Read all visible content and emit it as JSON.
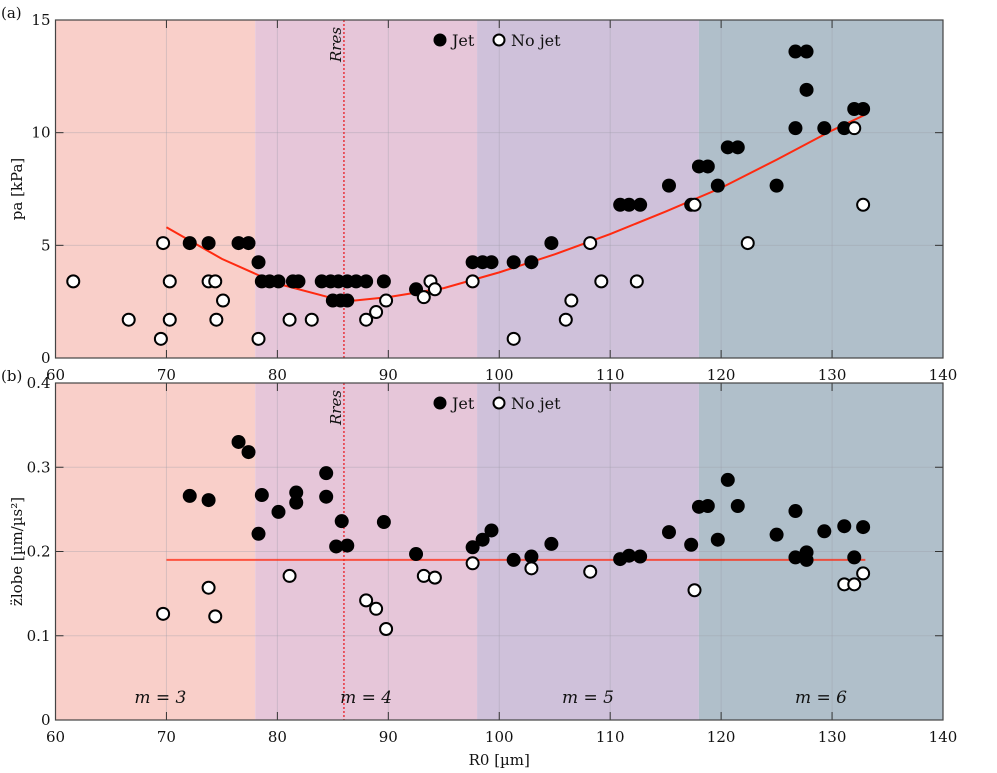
{
  "chart_data": [
    {
      "panel_label": "(a)",
      "type": "scatter",
      "xlabel": "R0 [µm]",
      "ylabel": "pa [kPa]",
      "xlim": [
        60,
        140
      ],
      "ylim": [
        0,
        15
      ],
      "xticks": [
        60,
        70,
        80,
        90,
        100,
        110,
        120,
        130,
        140
      ],
      "yticks": [
        0,
        5,
        10,
        15
      ],
      "grid": true,
      "legend": {
        "placement": "top-center",
        "entries": [
          "Jet",
          "No jet"
        ]
      },
      "vline": {
        "label": "Rres",
        "x": 86
      },
      "series": [
        {
          "name": "Jet",
          "marker": "filled",
          "points": [
            [
              72.1,
              5.1
            ],
            [
              73.8,
              5.1
            ],
            [
              76.5,
              5.1
            ],
            [
              77.4,
              5.1
            ],
            [
              78.3,
              4.25
            ],
            [
              78.6,
              3.4
            ],
            [
              79.3,
              3.4
            ],
            [
              80.1,
              3.4
            ],
            [
              81.4,
              3.4
            ],
            [
              81.9,
              3.4
            ],
            [
              84.0,
              3.4
            ],
            [
              84.8,
              3.4
            ],
            [
              85.5,
              3.4
            ],
            [
              86.3,
              3.4
            ],
            [
              87.1,
              3.4
            ],
            [
              88.0,
              3.4
            ],
            [
              89.6,
              3.4
            ],
            [
              85.0,
              2.55
            ],
            [
              85.7,
              2.55
            ],
            [
              86.3,
              2.55
            ],
            [
              92.5,
              3.05
            ],
            [
              97.6,
              4.25
            ],
            [
              98.5,
              4.25
            ],
            [
              99.3,
              4.25
            ],
            [
              101.3,
              4.25
            ],
            [
              102.9,
              4.25
            ],
            [
              104.7,
              5.1
            ],
            [
              110.9,
              6.8
            ],
            [
              111.7,
              6.8
            ],
            [
              112.7,
              6.8
            ],
            [
              115.3,
              7.65
            ],
            [
              117.3,
              6.8
            ],
            [
              118.0,
              8.5
            ],
            [
              118.8,
              8.5
            ],
            [
              119.7,
              7.65
            ],
            [
              120.6,
              9.35
            ],
            [
              121.5,
              9.35
            ],
            [
              125.0,
              7.65
            ],
            [
              126.7,
              10.2
            ],
            [
              126.7,
              13.6
            ],
            [
              127.7,
              13.6
            ],
            [
              127.7,
              11.9
            ],
            [
              129.3,
              10.2
            ],
            [
              131.1,
              10.2
            ],
            [
              132.0,
              11.05
            ],
            [
              132.8,
              11.05
            ]
          ]
        },
        {
          "name": "No jet",
          "marker": "open",
          "points": [
            [
              61.6,
              3.4
            ],
            [
              66.6,
              1.7
            ],
            [
              69.5,
              0.85
            ],
            [
              69.7,
              5.1
            ],
            [
              70.3,
              3.4
            ],
            [
              70.3,
              1.7
            ],
            [
              73.8,
              3.4
            ],
            [
              74.4,
              3.4
            ],
            [
              74.5,
              1.7
            ],
            [
              75.1,
              2.55
            ],
            [
              78.3,
              0.85
            ],
            [
              81.1,
              1.7
            ],
            [
              83.1,
              1.7
            ],
            [
              88.0,
              1.7
            ],
            [
              88.9,
              2.04
            ],
            [
              89.8,
              2.55
            ],
            [
              93.2,
              2.7
            ],
            [
              93.8,
              3.4
            ],
            [
              94.2,
              3.05
            ],
            [
              97.6,
              3.4
            ],
            [
              101.3,
              0.85
            ],
            [
              106.0,
              1.7
            ],
            [
              106.5,
              2.55
            ],
            [
              108.2,
              5.1
            ],
            [
              109.2,
              3.4
            ],
            [
              112.4,
              3.4
            ],
            [
              117.6,
              6.8
            ],
            [
              122.4,
              5.1
            ],
            [
              132.0,
              10.2
            ],
            [
              132.8,
              6.8
            ]
          ]
        }
      ],
      "fit": [
        [
          70,
          5.8
        ],
        [
          75,
          4.4
        ],
        [
          80,
          3.3
        ],
        [
          85,
          2.65
        ],
        [
          87,
          2.55
        ],
        [
          90,
          2.7
        ],
        [
          95,
          3.1
        ],
        [
          100,
          3.8
        ],
        [
          105,
          4.6
        ],
        [
          110,
          5.5
        ],
        [
          115,
          6.5
        ],
        [
          120,
          7.55
        ],
        [
          125,
          8.8
        ],
        [
          130,
          10.1
        ],
        [
          133,
          10.8
        ]
      ]
    },
    {
      "panel_label": "(b)",
      "type": "scatter",
      "xlabel": "R0 [µm]",
      "ylabel": "z̈lobe [µm/µs²]",
      "xlim": [
        60,
        140
      ],
      "ylim": [
        0,
        0.4
      ],
      "xticks": [
        60,
        70,
        80,
        90,
        100,
        110,
        120,
        130,
        140
      ],
      "yticks": [
        0,
        0.1,
        0.2,
        0.3,
        0.4
      ],
      "grid": true,
      "legend": {
        "placement": "top-center",
        "entries": [
          "Jet",
          "No jet"
        ]
      },
      "vline": {
        "label": "Rres",
        "x": 86
      },
      "series": [
        {
          "name": "Jet",
          "marker": "filled",
          "points": [
            [
              72.1,
              0.266
            ],
            [
              73.8,
              0.261
            ],
            [
              76.5,
              0.33
            ],
            [
              77.4,
              0.318
            ],
            [
              78.3,
              0.221
            ],
            [
              78.6,
              0.267
            ],
            [
              80.1,
              0.247
            ],
            [
              81.7,
              0.27
            ],
            [
              81.7,
              0.258
            ],
            [
              84.4,
              0.293
            ],
            [
              84.4,
              0.265
            ],
            [
              85.8,
              0.236
            ],
            [
              85.3,
              0.206
            ],
            [
              86.3,
              0.207
            ],
            [
              89.6,
              0.235
            ],
            [
              92.5,
              0.197
            ],
            [
              97.6,
              0.205
            ],
            [
              98.5,
              0.214
            ],
            [
              99.3,
              0.225
            ],
            [
              101.3,
              0.19
            ],
            [
              102.9,
              0.194
            ],
            [
              104.7,
              0.209
            ],
            [
              110.9,
              0.191
            ],
            [
              111.7,
              0.195
            ],
            [
              112.7,
              0.194
            ],
            [
              115.3,
              0.223
            ],
            [
              117.3,
              0.208
            ],
            [
              118.0,
              0.253
            ],
            [
              118.8,
              0.254
            ],
            [
              119.7,
              0.214
            ],
            [
              120.6,
              0.285
            ],
            [
              121.5,
              0.254
            ],
            [
              125.0,
              0.22
            ],
            [
              126.7,
              0.248
            ],
            [
              126.7,
              0.193
            ],
            [
              127.7,
              0.199
            ],
            [
              127.7,
              0.19
            ],
            [
              129.3,
              0.224
            ],
            [
              131.1,
              0.23
            ],
            [
              132.0,
              0.193
            ],
            [
              132.8,
              0.229
            ]
          ]
        },
        {
          "name": "No jet",
          "marker": "open",
          "points": [
            [
              69.7,
              0.126
            ],
            [
              73.8,
              0.157
            ],
            [
              74.4,
              0.123
            ],
            [
              81.1,
              0.171
            ],
            [
              88.0,
              0.142
            ],
            [
              88.9,
              0.132
            ],
            [
              89.8,
              0.108
            ],
            [
              93.2,
              0.171
            ],
            [
              94.2,
              0.169
            ],
            [
              97.6,
              0.186
            ],
            [
              102.9,
              0.18
            ],
            [
              108.2,
              0.176
            ],
            [
              117.6,
              0.154
            ],
            [
              131.1,
              0.161
            ],
            [
              132.0,
              0.161
            ],
            [
              132.8,
              0.174
            ]
          ]
        }
      ],
      "fit": [
        [
          70,
          0.19
        ],
        [
          133,
          0.19
        ]
      ]
    }
  ],
  "regions": [
    {
      "label": "m = 3",
      "from": 60,
      "to": 78,
      "color": "#f9cfc9"
    },
    {
      "label": "m = 4",
      "from": 78,
      "to": 98,
      "color": "#e6c6d9"
    },
    {
      "label": "m = 5",
      "from": 98,
      "to": 118,
      "color": "#cfc1da"
    },
    {
      "label": "m = 6",
      "from": 118,
      "to": 140,
      "color": "#b0bfca"
    }
  ],
  "colors": {
    "fit": "#ff2a10",
    "vline": "#e8323c",
    "grid": "#9a9aa6"
  }
}
